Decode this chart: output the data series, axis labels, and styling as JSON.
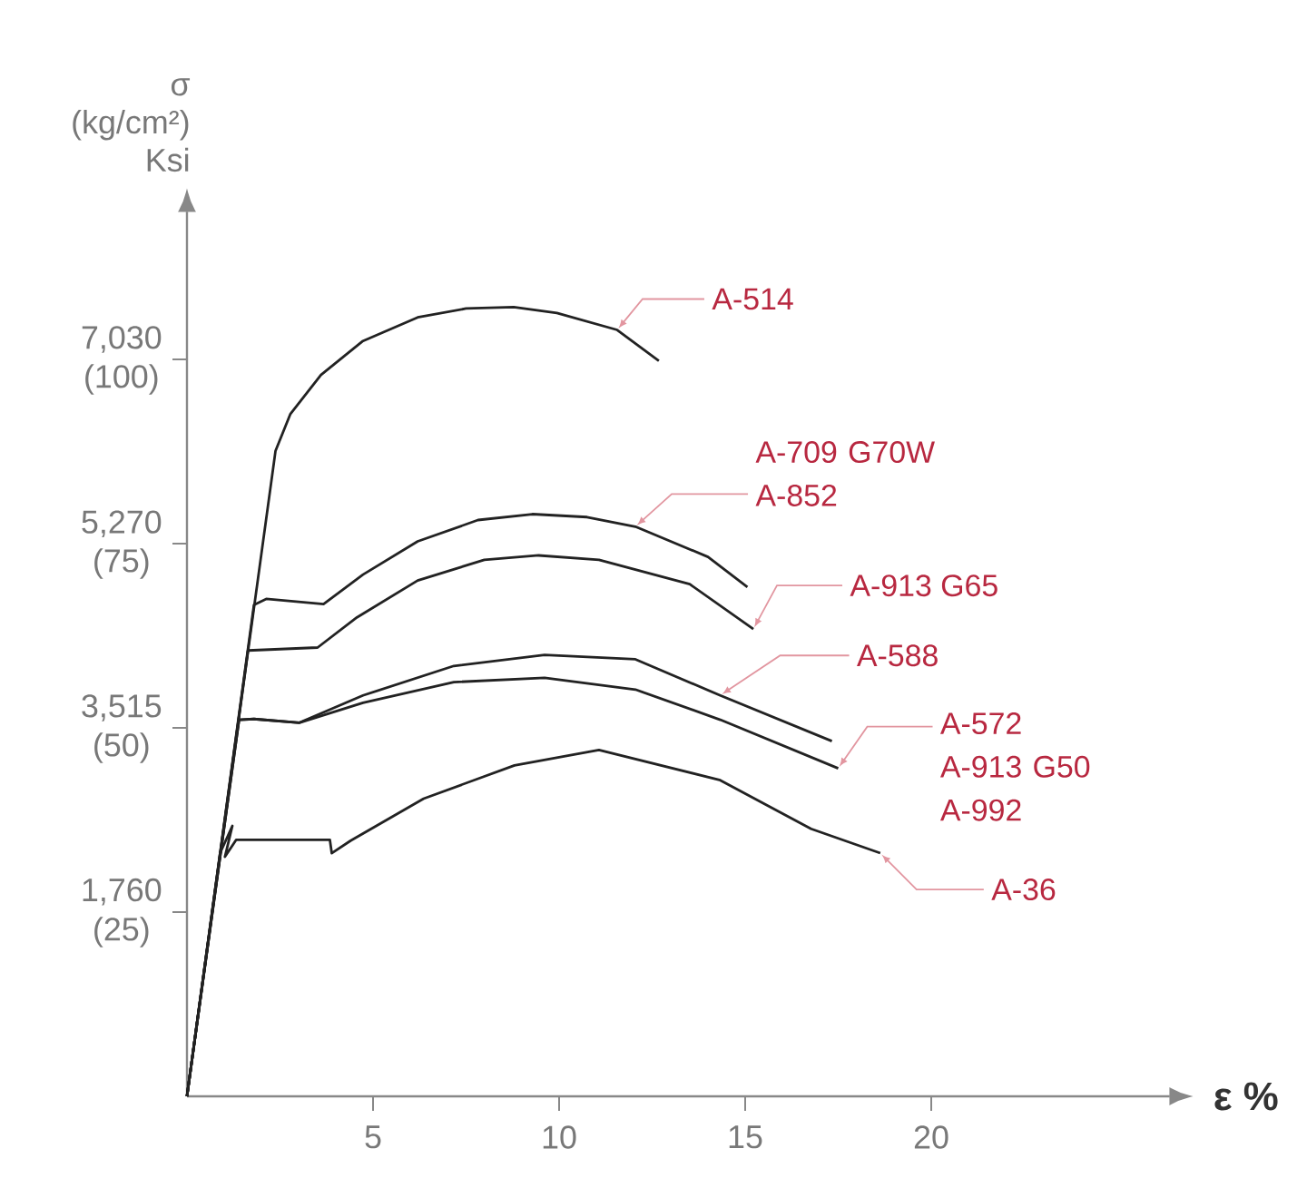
{
  "chart_data": {
    "type": "line",
    "xlabel": "ε %",
    "y2label": "σ (kg/cm²) Ksi",
    "xlim": [
      0,
      26.4
    ],
    "ylim": [
      0,
      120
    ],
    "xticks": [
      5,
      10,
      15,
      20
    ],
    "yticks": [
      {
        "value": 25,
        "label": "(25)"
      },
      {
        "value": 50,
        "label": "(50)"
      },
      {
        "value": 75,
        "label": "(75)"
      },
      {
        "value": 100,
        "label": "(100)"
      }
    ],
    "y2lim": [
      0,
      8436
    ],
    "y2ticks": [
      {
        "value": 1760,
        "label": "1,760"
      },
      {
        "value": 3515,
        "label": "3,515"
      },
      {
        "value": 5270,
        "label": "5,270"
      },
      {
        "value": 7030,
        "label": "7,030"
      }
    ],
    "series": [
      {
        "name": "A-514",
        "color": "#222222",
        "x": [
          0,
          2.38,
          2.78,
          3.6,
          4.73,
          6.2,
          7.5,
          8.78,
          9.94,
          11.56,
          12.68
        ],
        "values": [
          0,
          87.6,
          92.6,
          97.9,
          102.5,
          105.7,
          106.9,
          107.1,
          106.3,
          104.0,
          99.8
        ]
      },
      {
        "name": "A-709 G70W A-852",
        "color": "#222222",
        "x": [
          0,
          1.8,
          2.13,
          3.67,
          4.73,
          6.2,
          7.82,
          9.28,
          10.75,
          12.05,
          14.0,
          15.06
        ],
        "values": [
          0,
          66.7,
          67.5,
          66.8,
          70.8,
          75.3,
          78.2,
          79.0,
          78.6,
          77.3,
          73.2,
          69.1
        ]
      },
      {
        "name": "A-913 G65",
        "color": "#222222",
        "x": [
          0,
          1.64,
          3.51,
          4.57,
          6.2,
          7.99,
          9.45,
          11.07,
          13.51,
          15.22
        ],
        "values": [
          0,
          60.5,
          60.9,
          65.0,
          70.0,
          72.8,
          73.4,
          72.8,
          69.5,
          63.4
        ]
      },
      {
        "name": "A-588",
        "color": "#222222",
        "x": [
          0,
          1.4,
          1.8,
          3.02,
          4.73,
          7.17,
          9.61,
          12.05,
          14.33,
          17.33
        ],
        "values": [
          0,
          51.1,
          51.2,
          50.7,
          54.4,
          58.4,
          59.9,
          59.3,
          54.4,
          48.2
        ]
      },
      {
        "name": "A-572 A-913 G50 A-992",
        "color": "#222222",
        "x": [
          0,
          1.4,
          1.8,
          3.02,
          4.73,
          7.17,
          9.61,
          12.05,
          14.33,
          17.5
        ],
        "values": [
          0,
          51.1,
          51.2,
          50.7,
          53.4,
          56.2,
          56.8,
          55.2,
          51.1,
          44.5
        ]
      },
      {
        "name": "A-36",
        "color": "#222222",
        "x": [
          0,
          0.89,
          1.22,
          1.02,
          1.32,
          3.84,
          3.89,
          4.4,
          6.36,
          8.8,
          11.07,
          14.33,
          16.77,
          18.63
        ],
        "values": [
          0,
          33.0,
          36.7,
          32.5,
          34.8,
          34.8,
          33.0,
          34.7,
          40.4,
          44.9,
          47.0,
          42.9,
          36.3,
          33.0
        ]
      }
    ]
  }
}
